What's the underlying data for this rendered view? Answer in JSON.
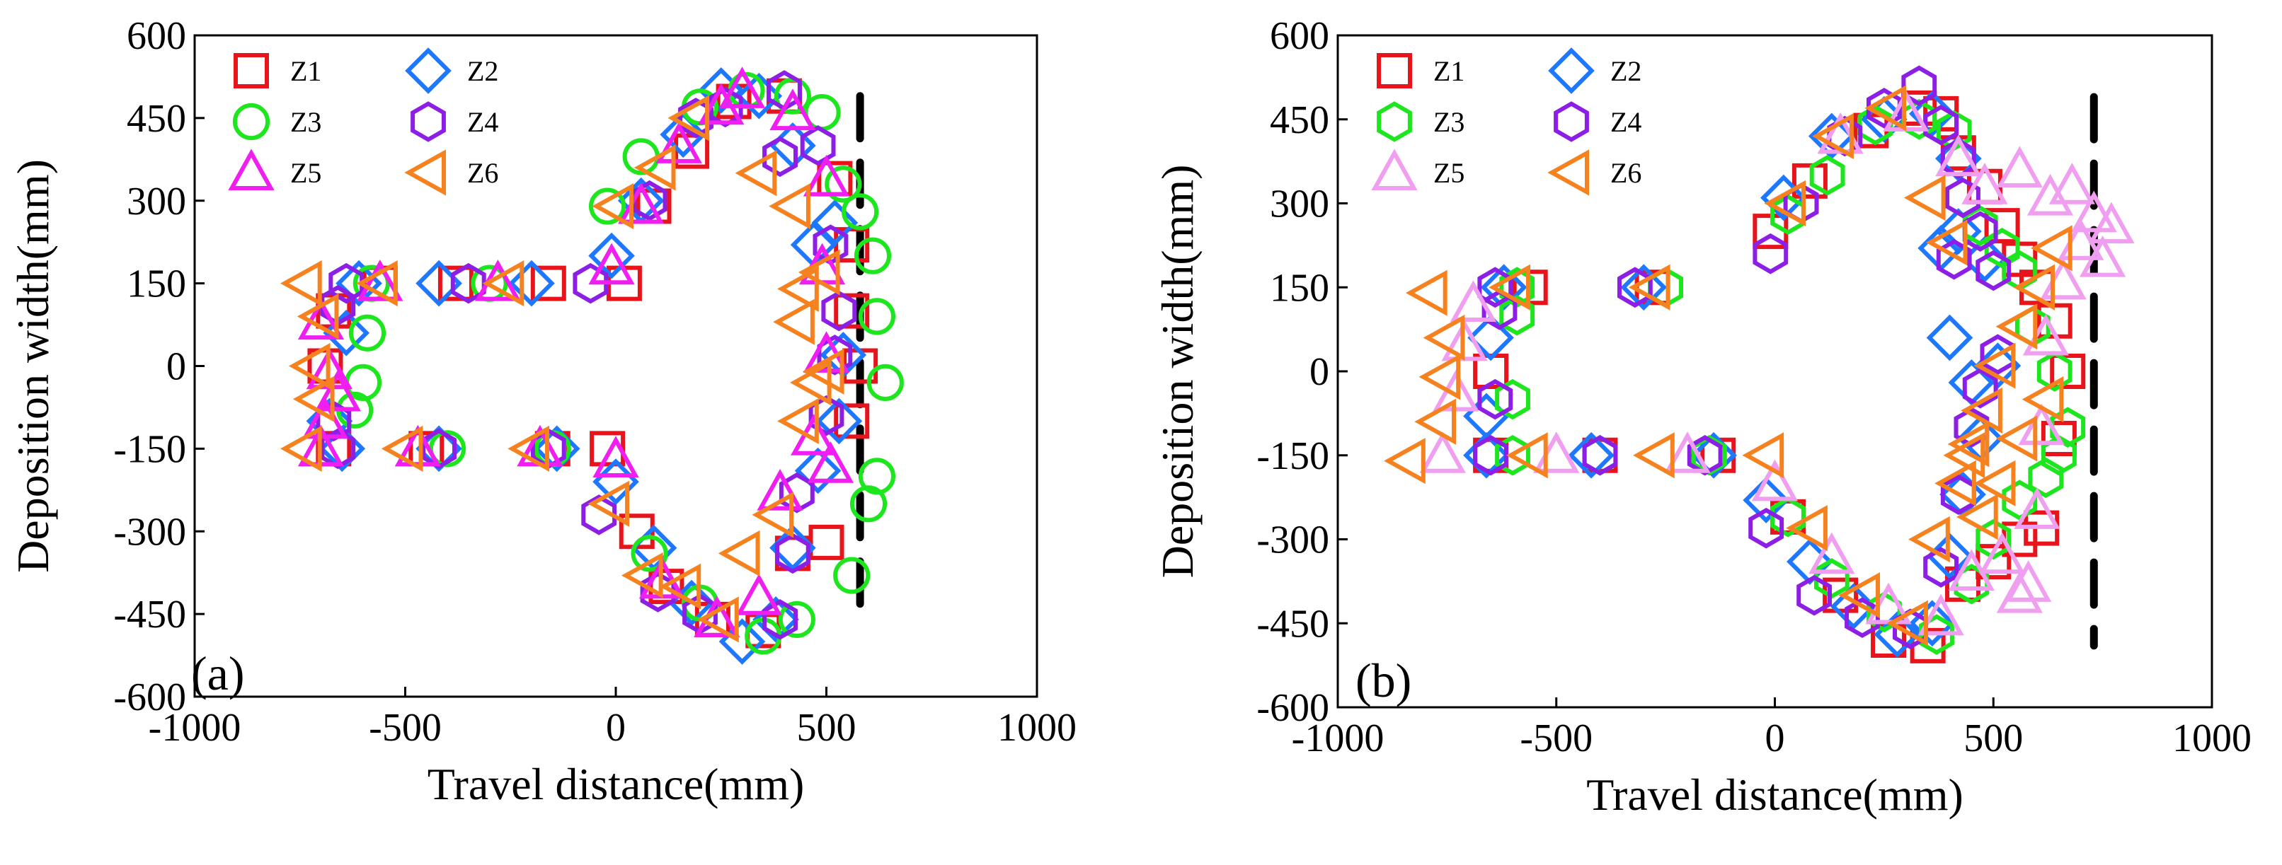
{
  "chart_data": [
    {
      "type": "scatter",
      "panel_label": "(a)",
      "xlabel": "Travel distance(mm)",
      "ylabel": "Deposition width(mm)",
      "xlim": [
        -1000,
        1000
      ],
      "ylim": [
        -600,
        600
      ],
      "xticks": [
        -1000,
        -500,
        0,
        500,
        1000
      ],
      "yticks": [
        -600,
        -450,
        -300,
        -150,
        0,
        150,
        300,
        450,
        600
      ],
      "grid": false,
      "legend_position": "top-left",
      "reference_line_x": 580,
      "reference_line_y_range": [
        -470,
        490
      ],
      "series": [
        {
          "name": "Z1",
          "marker": "square",
          "color": "#e8141c",
          "x": [
            -670,
            -450,
            -150,
            -20,
            50,
            120,
            230,
            350,
            420,
            500,
            560,
            580,
            560,
            560,
            520,
            400,
            280,
            180,
            90,
            20,
            -160,
            -380,
            -560,
            -670,
            -690
          ],
          "y": [
            -150,
            -150,
            -150,
            -150,
            -300,
            -400,
            -460,
            -480,
            -340,
            -320,
            -100,
            0,
            100,
            220,
            340,
            490,
            480,
            390,
            290,
            150,
            150,
            150,
            150,
            100,
            0
          ]
        },
        {
          "name": "Z2",
          "marker": "diamond",
          "color": "#1e78ff",
          "x": [
            -650,
            -420,
            -140,
            0,
            90,
            180,
            300,
            380,
            420,
            480,
            530,
            540,
            520,
            470,
            420,
            340,
            250,
            160,
            60,
            -10,
            -200,
            -420,
            -610,
            -640,
            -680
          ],
          "y": [
            -150,
            -150,
            -150,
            -210,
            -330,
            -430,
            -500,
            -460,
            -330,
            -190,
            -100,
            20,
            260,
            220,
            400,
            490,
            500,
            420,
            300,
            200,
            150,
            150,
            150,
            60,
            -100
          ]
        },
        {
          "name": "Z3",
          "marker": "circle",
          "color": "#1ee61e",
          "x": [
            -620,
            -600,
            -590,
            -400,
            -150,
            80,
            200,
            350,
            430,
            560,
            600,
            620,
            640,
            620,
            610,
            580,
            540,
            490,
            420,
            310,
            200,
            60,
            -20,
            -300,
            -580
          ],
          "y": [
            -80,
            -30,
            60,
            -150,
            -150,
            -340,
            -430,
            -490,
            -460,
            -380,
            -250,
            -200,
            -30,
            90,
            200,
            280,
            330,
            460,
            490,
            500,
            470,
            380,
            290,
            150,
            150
          ]
        },
        {
          "name": "Z4",
          "marker": "hexagon",
          "color": "#8c1ee6",
          "x": [
            -670,
            -660,
            -420,
            -160,
            -40,
            100,
            200,
            390,
            420,
            430,
            500,
            520,
            530,
            510,
            480,
            400,
            390,
            260,
            190,
            80,
            -60,
            -350,
            -640,
            -660
          ],
          "y": [
            -100,
            -150,
            -150,
            -150,
            -270,
            -410,
            -450,
            -460,
            -340,
            -230,
            -90,
            20,
            100,
            220,
            400,
            500,
            380,
            470,
            450,
            300,
            150,
            150,
            150,
            110
          ]
        },
        {
          "name": "Z5",
          "marker": "triangle-up",
          "color": "#f01ef0",
          "x": [
            -700,
            -690,
            -660,
            -470,
            -180,
            0,
            110,
            240,
            340,
            390,
            470,
            510,
            500,
            490,
            500,
            420,
            300,
            250,
            150,
            60,
            -10,
            -280,
            -560,
            -700,
            -680
          ],
          "y": [
            -150,
            -100,
            -50,
            -150,
            -150,
            -170,
            -390,
            -460,
            -420,
            -230,
            -130,
            -180,
            20,
            180,
            340,
            460,
            500,
            470,
            400,
            290,
            180,
            150,
            150,
            80,
            -10
          ]
        },
        {
          "name": "Z6",
          "marker": "triangle-left",
          "color": "#f5821e",
          "x": [
            -740,
            -710,
            -720,
            -700,
            -500,
            -200,
            -10,
            70,
            160,
            250,
            300,
            380,
            440,
            470,
            500,
            430,
            440,
            490,
            420,
            340,
            180,
            100,
            0,
            -260,
            -560,
            -740
          ],
          "y": [
            -150,
            -60,
            0,
            90,
            -150,
            -150,
            -250,
            -380,
            -400,
            -460,
            -340,
            -270,
            -100,
            -30,
            -10,
            80,
            140,
            170,
            290,
            350,
            450,
            360,
            290,
            150,
            150,
            150
          ]
        }
      ]
    },
    {
      "type": "scatter",
      "panel_label": "(b)",
      "xlabel": "Travel distance(mm)",
      "ylabel": "Deposition width(mm)",
      "xlim": [
        -1000,
        1000
      ],
      "ylim": [
        -600,
        600
      ],
      "xticks": [
        -1000,
        -500,
        0,
        500,
        1000
      ],
      "yticks": [
        -600,
        -450,
        -300,
        -150,
        0,
        150,
        300,
        450,
        600
      ],
      "grid": false,
      "legend_position": "top-left",
      "reference_line_x": 730,
      "reference_line_y_range": [
        -490,
        490
      ],
      "series": [
        {
          "name": "Z1",
          "marker": "square",
          "color": "#e8141c",
          "x": [
            -650,
            -650,
            -400,
            -130,
            30,
            150,
            260,
            350,
            430,
            500,
            560,
            610,
            650,
            670,
            640,
            600,
            560,
            520,
            480,
            420,
            380,
            330,
            220,
            80,
            -10,
            -280,
            -560
          ],
          "y": [
            -150,
            0,
            -150,
            -150,
            -260,
            -400,
            -480,
            -490,
            -380,
            -340,
            -300,
            -280,
            -120,
            0,
            90,
            150,
            200,
            260,
            330,
            390,
            460,
            470,
            430,
            340,
            250,
            150,
            150
          ]
        },
        {
          "name": "Z2",
          "marker": "diamond",
          "color": "#1e78ff",
          "x": [
            -660,
            -660,
            -650,
            -420,
            -140,
            -20,
            80,
            180,
            280,
            360,
            400,
            430,
            470,
            510,
            450,
            400,
            380,
            420,
            480,
            420,
            360,
            250,
            130,
            20,
            -300,
            -620
          ],
          "y": [
            -150,
            -80,
            60,
            -150,
            -150,
            -230,
            -340,
            -420,
            -470,
            -450,
            -330,
            -220,
            -120,
            10,
            -20,
            60,
            220,
            250,
            200,
            380,
            460,
            450,
            420,
            310,
            150,
            150
          ]
        },
        {
          "name": "Z3",
          "marker": "hexagon",
          "color": "#1ee61e",
          "x": [
            -600,
            -600,
            -590,
            -400,
            -150,
            30,
            130,
            250,
            370,
            450,
            500,
            560,
            620,
            650,
            670,
            640,
            590,
            560,
            520,
            470,
            410,
            330,
            230,
            120,
            30,
            -250,
            -590
          ],
          "y": [
            -150,
            -50,
            100,
            -150,
            -150,
            -260,
            -370,
            -430,
            -470,
            -380,
            -300,
            -230,
            -190,
            -150,
            -100,
            0,
            80,
            180,
            220,
            260,
            430,
            450,
            440,
            350,
            280,
            150,
            150
          ]
        },
        {
          "name": "Z4",
          "marker": "hexagon",
          "color": "#8c1ee6",
          "x": [
            -650,
            -640,
            -630,
            -400,
            -160,
            -20,
            90,
            200,
            310,
            380,
            420,
            450,
            470,
            510,
            500,
            470,
            430,
            410,
            420,
            380,
            330,
            250,
            160,
            60,
            -10,
            -320,
            -640
          ],
          "y": [
            -150,
            -50,
            110,
            -150,
            -150,
            -280,
            -400,
            -440,
            -460,
            -350,
            -220,
            -100,
            -30,
            30,
            180,
            250,
            310,
            200,
            380,
            440,
            510,
            470,
            420,
            300,
            210,
            150,
            150
          ]
        },
        {
          "name": "Z5",
          "marker": "triangle-up",
          "color": "#f09ef0",
          "x": [
            -760,
            -730,
            -710,
            -690,
            -500,
            -200,
            0,
            130,
            260,
            380,
            450,
            520,
            560,
            580,
            600,
            610,
            620,
            660,
            700,
            730,
            770,
            750,
            680,
            630,
            560,
            480,
            420,
            300,
            150
          ],
          "y": [
            -150,
            -40,
            50,
            120,
            -150,
            -150,
            -200,
            -330,
            -420,
            -440,
            -360,
            -330,
            -400,
            -380,
            -250,
            -100,
            60,
            160,
            230,
            280,
            260,
            200,
            330,
            310,
            360,
            330,
            380,
            460,
            420
          ]
        },
        {
          "name": "Z6",
          "marker": "triangle-left",
          "color": "#f5821e",
          "x": [
            -840,
            -770,
            -760,
            -750,
            -790,
            -560,
            -270,
            -20,
            80,
            200,
            310,
            360,
            420,
            450,
            480,
            510,
            560,
            600,
            640,
            620,
            560,
            510,
            470,
            440,
            400,
            350,
            260,
            140,
            30,
            -280,
            -600
          ],
          "y": [
            -160,
            -90,
            -10,
            60,
            140,
            -150,
            -150,
            -150,
            -280,
            -400,
            -450,
            -300,
            -200,
            -130,
            -70,
            10,
            80,
            150,
            220,
            -50,
            -120,
            -200,
            -260,
            -150,
            230,
            310,
            470,
            420,
            300,
            150,
            150
          ]
        }
      ]
    }
  ]
}
